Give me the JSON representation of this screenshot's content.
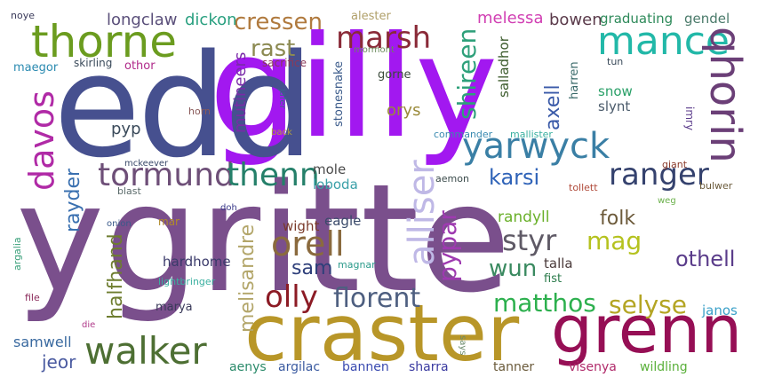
{
  "words": [
    {
      "text": "ygritte",
      "color": "#7a4f8c"
    },
    {
      "text": "gilly",
      "color": "#a218f0"
    },
    {
      "text": "edd",
      "color": "#46508f"
    },
    {
      "text": "craster",
      "color": "#b89628"
    },
    {
      "text": "grenn",
      "color": "#960f55"
    },
    {
      "text": "thorne",
      "color": "#6b9c1f"
    },
    {
      "text": "walker",
      "color": "#4d6f33"
    },
    {
      "text": "mance",
      "color": "#22b8a8"
    },
    {
      "text": "marsh",
      "color": "#8a2a38"
    },
    {
      "text": "yarwyck",
      "color": "#3a7fa5"
    },
    {
      "text": "qhorin",
      "color": "#6b3f77"
    },
    {
      "text": "davos",
      "color": "#b02aa6"
    },
    {
      "text": "tormund",
      "color": "#6e4f78"
    },
    {
      "text": "thenn",
      "color": "#25806a"
    },
    {
      "text": "ranger",
      "color": "#35426e"
    },
    {
      "text": "alliser",
      "color": "#bfb8e6"
    },
    {
      "text": "orell",
      "color": "#8a6a3e"
    },
    {
      "text": "olly",
      "color": "#8c1b25"
    },
    {
      "text": "florent",
      "color": "#4e5f80"
    },
    {
      "text": "shireen",
      "color": "#2ea07a"
    },
    {
      "text": "cressen",
      "color": "#b07a3e"
    },
    {
      "text": "rast",
      "color": "#8c8a52"
    },
    {
      "text": "pypar",
      "color": "#9e3ab0"
    },
    {
      "text": "styr",
      "color": "#5f5a66"
    },
    {
      "text": "mag",
      "color": "#b5c21f"
    },
    {
      "text": "wun",
      "color": "#3a8a60"
    },
    {
      "text": "selyse",
      "color": "#b4a524"
    },
    {
      "text": "matthos",
      "color": "#2db04e"
    },
    {
      "text": "othell",
      "color": "#5a3c8a"
    },
    {
      "text": "karsi",
      "color": "#2f63b8"
    },
    {
      "text": "folk",
      "color": "#6c5a3a"
    },
    {
      "text": "axell",
      "color": "#3a5aa8"
    },
    {
      "text": "melisandre",
      "color": "#b3a66a"
    },
    {
      "text": "halfhand",
      "color": "#6e7d2f"
    },
    {
      "text": "sam",
      "color": "#2e3f7a"
    },
    {
      "text": "rayder",
      "color": "#3a70b0"
    },
    {
      "text": "longclaw",
      "color": "#5a4f7a"
    },
    {
      "text": "dickon",
      "color": "#2aa080"
    },
    {
      "text": "melessa",
      "color": "#d13fb3"
    },
    {
      "text": "bowen",
      "color": "#5a3a4a"
    },
    {
      "text": "graduating",
      "color": "#2e8a5a"
    },
    {
      "text": "gendel",
      "color": "#4a7a6a"
    },
    {
      "text": "mutineers",
      "color": "#7a2aa8"
    },
    {
      "text": "salladhor",
      "color": "#3a5a2a"
    },
    {
      "text": "stonesnake",
      "color": "#3a5a8a"
    },
    {
      "text": "harren",
      "color": "#3a6a6a"
    },
    {
      "text": "snow",
      "color": "#2aa068"
    },
    {
      "text": "slynt",
      "color": "#4a5a6a"
    },
    {
      "text": "orys",
      "color": "#9a8a3a"
    },
    {
      "text": "pyp",
      "color": "#3a4a5a"
    },
    {
      "text": "mole",
      "color": "#4a4a4a"
    },
    {
      "text": "loboda",
      "color": "#3aa0a8"
    },
    {
      "text": "wight",
      "color": "#7a3a2a"
    },
    {
      "text": "eagle",
      "color": "#3a4a6a"
    },
    {
      "text": "randyll",
      "color": "#6ab02a"
    },
    {
      "text": "talla",
      "color": "#4a3a3a"
    },
    {
      "text": "fist",
      "color": "#2a7a4a"
    },
    {
      "text": "janos",
      "color": "#3aa0c8"
    },
    {
      "text": "jeor",
      "color": "#4a5aa0"
    },
    {
      "text": "samwell",
      "color": "#3a6aa0"
    },
    {
      "text": "hardhome",
      "color": "#3a3a6a"
    },
    {
      "text": "lightbringer",
      "color": "#3ab0a0"
    },
    {
      "text": "magnar",
      "color": "#2a9a8a"
    },
    {
      "text": "marya",
      "color": "#3a3a5a"
    },
    {
      "text": "aenys",
      "color": "#2a8a6a"
    },
    {
      "text": "argilac",
      "color": "#3a5aa0"
    },
    {
      "text": "bannen",
      "color": "#3a4ab0"
    },
    {
      "text": "sharra",
      "color": "#3a3aa0"
    },
    {
      "text": "tanner",
      "color": "#6a5a3a"
    },
    {
      "text": "visenya",
      "color": "#b02a6a"
    },
    {
      "text": "wildling",
      "color": "#5ab03a"
    },
    {
      "text": "noye",
      "color": "#3a3a5a"
    },
    {
      "text": "maegor",
      "color": "#2a8ab0"
    },
    {
      "text": "skirling",
      "color": "#3a4a5a"
    },
    {
      "text": "othor",
      "color": "#b02a8a"
    },
    {
      "text": "sacrifice",
      "color": "#8a3a5a"
    },
    {
      "text": "alester",
      "color": "#b0a06a"
    },
    {
      "text": "mormont",
      "color": "#6a8a5a"
    },
    {
      "text": "gorne",
      "color": "#3a4a3a"
    },
    {
      "text": "tun",
      "color": "#3a4a5a"
    },
    {
      "text": "horn",
      "color": "#8a5a5a"
    },
    {
      "text": "jafer",
      "color": "#3a6a8a"
    },
    {
      "text": "back",
      "color": "#b0a03a"
    },
    {
      "text": "commander",
      "color": "#3a8ab0"
    },
    {
      "text": "mallister",
      "color": "#3ab0a0"
    },
    {
      "text": "imry",
      "color": "#5a3a8a"
    },
    {
      "text": "mckeever",
      "color": "#3a4a6a"
    },
    {
      "text": "blast",
      "color": "#5a6a6a"
    },
    {
      "text": "aemon",
      "color": "#3a4a4a"
    },
    {
      "text": "tollett",
      "color": "#b04a3a"
    },
    {
      "text": "giant",
      "color": "#8a3a2a"
    },
    {
      "text": "bulwer",
      "color": "#6a5a3a"
    },
    {
      "text": "weg",
      "color": "#6ab04a"
    },
    {
      "text": "onion",
      "color": "#3a5a8a"
    },
    {
      "text": "mar",
      "color": "#b08a2a"
    },
    {
      "text": "doh",
      "color": "#3a3a8a"
    },
    {
      "text": "argalia",
      "color": "#3aa07a"
    },
    {
      "text": "file",
      "color": "#8a2a5a"
    },
    {
      "text": "die",
      "color": "#b03a8a"
    },
    {
      "text": "says",
      "color": "#6a8a6a"
    }
  ]
}
